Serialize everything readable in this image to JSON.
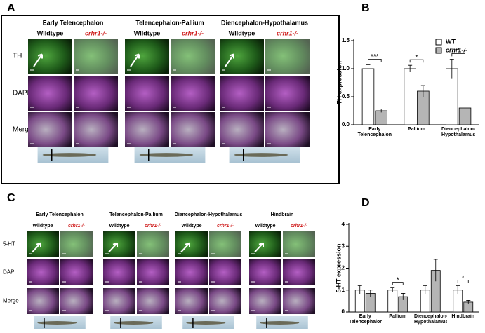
{
  "panels": [
    {
      "letter": "A",
      "regions": [
        "Early Telencephalon",
        "Telencephalon-Pallium",
        "Diencephalon-Hypothalamus"
      ],
      "genotypes": [
        "Wildtype",
        "crhr1-/-"
      ],
      "rows": [
        "TH",
        "DAPI",
        "Merge"
      ]
    },
    {
      "letter": "C",
      "regions": [
        "Early Telencephalon",
        "Telencephalon-Pallium",
        "Diencephalon-Hypothalamus",
        "Hindbrain"
      ],
      "genotypes": [
        "Wildtype",
        "crhr1-/-"
      ],
      "rows": [
        "5-HT",
        "DAPI",
        "Merge"
      ]
    }
  ],
  "chart_data": [
    {
      "letter": "B",
      "type": "bar",
      "ylabel": "TH expression",
      "categories": [
        "Early Telencephalon",
        "Pallium",
        "Diencephalon-Hypothalamus"
      ],
      "series": [
        {
          "name": "WT",
          "color": "#ffffff",
          "values": [
            1.0,
            1.0,
            1.0
          ],
          "errors": [
            0.07,
            0.06,
            0.17
          ]
        },
        {
          "name": "crhr1-/-",
          "color": "#b5b5b5",
          "values": [
            0.25,
            0.6,
            0.3
          ],
          "errors": [
            0.03,
            0.1,
            0.02
          ]
        }
      ],
      "significance": [
        "***",
        "*",
        "*"
      ],
      "ylim": [
        0,
        1.5
      ],
      "yticks": [
        {
          "value": 0,
          "label": "0.0"
        },
        {
          "value": 0.5,
          "label": "0.5"
        },
        {
          "value": 1,
          "label": "1.0"
        },
        {
          "value": 1.5,
          "label": "1.5"
        }
      ],
      "legend": "top-right"
    },
    {
      "letter": "D",
      "type": "bar",
      "ylabel": "5-HT expression",
      "categories": [
        "Early Telencephalon",
        "Pallium",
        "Diencephalon-Hypothalamus",
        "Hindbrain"
      ],
      "series": [
        {
          "name": "WT",
          "color": "#ffffff",
          "values": [
            1.0,
            1.0,
            1.0,
            1.0
          ],
          "errors": [
            0.2,
            0.1,
            0.2,
            0.2
          ]
        },
        {
          "name": "crhr1-/-",
          "color": "#b5b5b5",
          "values": [
            0.85,
            0.7,
            1.9,
            0.45
          ],
          "errors": [
            0.15,
            0.15,
            0.5,
            0.08
          ]
        }
      ],
      "significance": [
        null,
        "*",
        null,
        "*"
      ],
      "ylim": [
        0,
        4
      ],
      "yticks": [
        0,
        1,
        2,
        3,
        4
      ]
    }
  ]
}
